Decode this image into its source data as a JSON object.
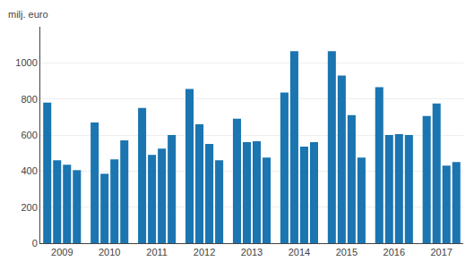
{
  "chart_data": {
    "type": "bar",
    "ylabel": "milj. euro",
    "categories": [
      null,
      "2009",
      null,
      null,
      null,
      "2010",
      null,
      null,
      null,
      "2011",
      null,
      null,
      null,
      "2012",
      null,
      null,
      null,
      "2013",
      null,
      null,
      null,
      "2014",
      null,
      null,
      null,
      "2015",
      null,
      null,
      null,
      "2016",
      null,
      null,
      null,
      "2017",
      null,
      null
    ],
    "values": [
      780,
      460,
      435,
      405,
      670,
      385,
      465,
      570,
      750,
      490,
      525,
      600,
      855,
      660,
      550,
      460,
      690,
      560,
      565,
      475,
      835,
      1065,
      535,
      560,
      1065,
      930,
      710,
      475,
      865,
      600,
      605,
      600,
      705,
      775,
      430,
      450
    ],
    "color": "#1a75b0",
    "ylim": [
      0,
      1200
    ],
    "yticks": [
      0,
      200,
      400,
      600,
      800,
      1000
    ],
    "grid": true
  }
}
